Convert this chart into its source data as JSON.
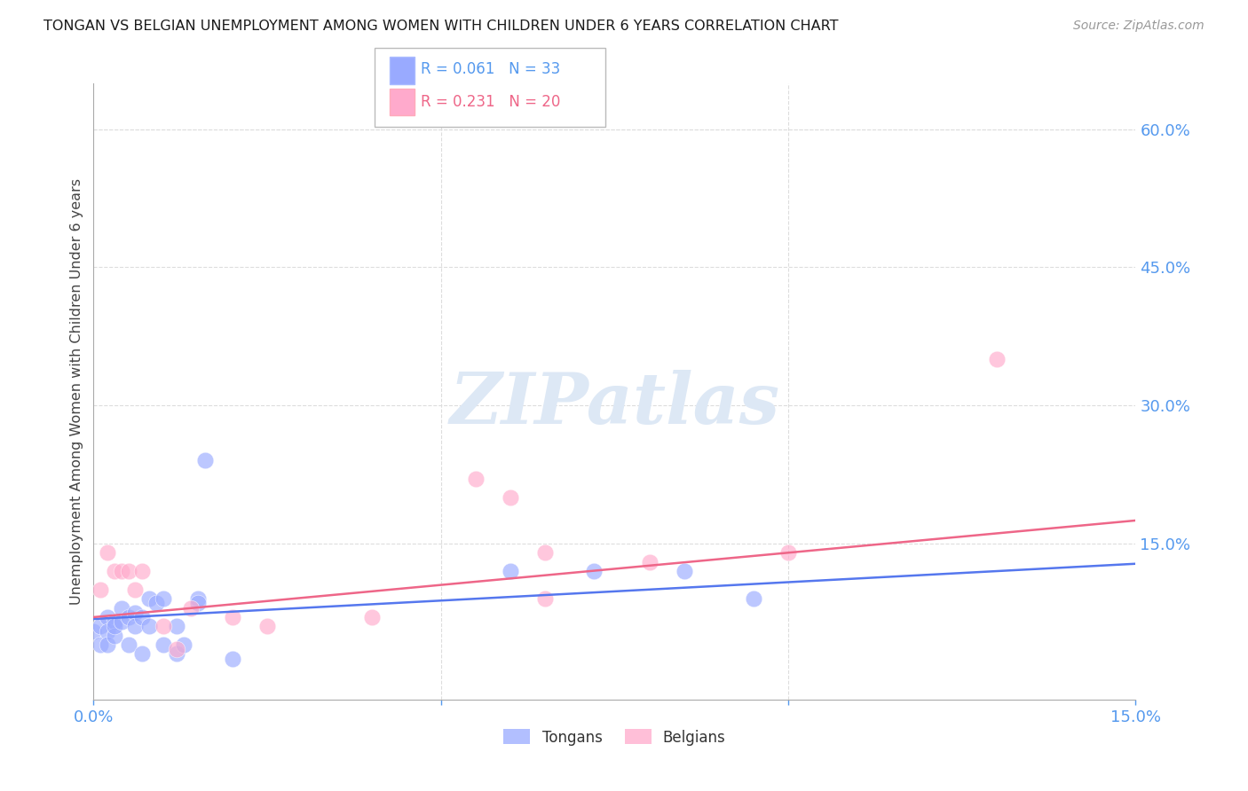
{
  "title": "TONGAN VS BELGIAN UNEMPLOYMENT AMONG WOMEN WITH CHILDREN UNDER 6 YEARS CORRELATION CHART",
  "source": "Source: ZipAtlas.com",
  "ylabel": "Unemployment Among Women with Children Under 6 years",
  "xlim": [
    0.0,
    0.15
  ],
  "ylim": [
    -0.02,
    0.65
  ],
  "blue_color": "#99aaff",
  "pink_color": "#ffaacc",
  "blue_line_color": "#5577ee",
  "pink_line_color": "#ee6688",
  "blue_R": 0.061,
  "blue_N": 33,
  "pink_R": 0.231,
  "pink_N": 20,
  "tongans_x": [
    0.0,
    0.001,
    0.001,
    0.002,
    0.002,
    0.002,
    0.003,
    0.003,
    0.003,
    0.004,
    0.004,
    0.005,
    0.005,
    0.006,
    0.006,
    0.007,
    0.007,
    0.008,
    0.008,
    0.009,
    0.01,
    0.01,
    0.012,
    0.012,
    0.013,
    0.015,
    0.015,
    0.016,
    0.02,
    0.06,
    0.072,
    0.085,
    0.095
  ],
  "tongans_y": [
    0.055,
    0.04,
    0.06,
    0.07,
    0.055,
    0.04,
    0.065,
    0.05,
    0.06,
    0.08,
    0.065,
    0.07,
    0.04,
    0.075,
    0.06,
    0.07,
    0.03,
    0.09,
    0.06,
    0.085,
    0.09,
    0.04,
    0.06,
    0.03,
    0.04,
    0.09,
    0.085,
    0.24,
    0.025,
    0.12,
    0.12,
    0.12,
    0.09
  ],
  "belgians_x": [
    0.001,
    0.002,
    0.003,
    0.004,
    0.005,
    0.006,
    0.007,
    0.01,
    0.012,
    0.014,
    0.02,
    0.025,
    0.04,
    0.055,
    0.06,
    0.065,
    0.065,
    0.08,
    0.1,
    0.13
  ],
  "belgians_y": [
    0.1,
    0.14,
    0.12,
    0.12,
    0.12,
    0.1,
    0.12,
    0.06,
    0.035,
    0.08,
    0.07,
    0.06,
    0.07,
    0.22,
    0.2,
    0.14,
    0.09,
    0.13,
    0.14,
    0.35
  ],
  "watermark_text": "ZIPatlas",
  "watermark_color": "#dde8f5",
  "background_color": "#ffffff",
  "grid_color": "#dddddd"
}
